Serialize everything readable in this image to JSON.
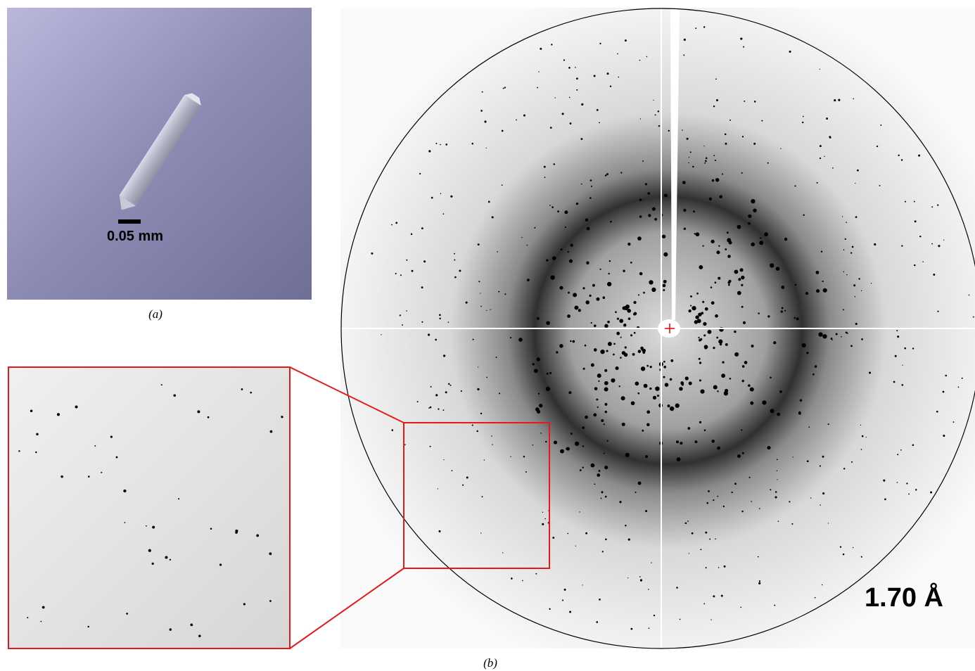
{
  "panels": [
    {
      "label": "(a)",
      "scale_bar": "0.05 mm"
    },
    {
      "label": "(b)",
      "resolution": "1.70 Å"
    }
  ]
}
